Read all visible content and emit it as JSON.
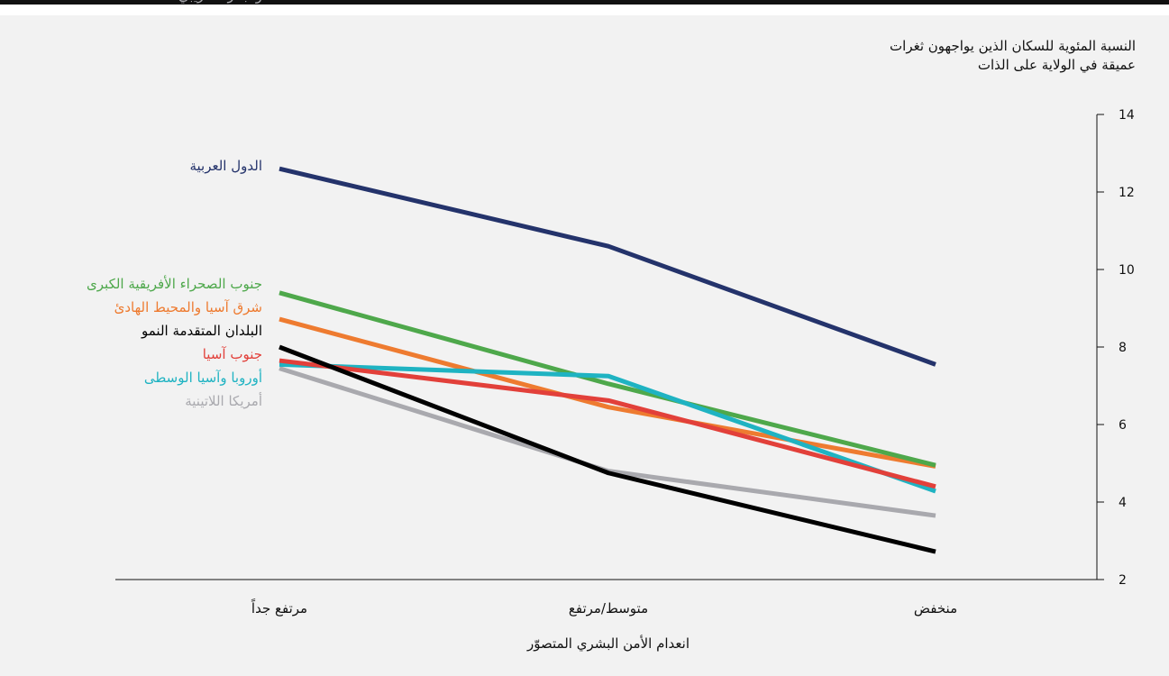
{
  "chart_data": {
    "type": "line",
    "title_lines": [
      "النسبة المئوية للسكان الذين يواجهون ثغرات",
      "عميقة في الولاية على الذات"
    ],
    "xlabel": "انعدام الأمن البشري المتصوّر",
    "ylabel": "",
    "categories": [
      "مرتفع جداً",
      "متوسط/مرتفع",
      "منخفض"
    ],
    "ylim": [
      2,
      14
    ],
    "yticks": [
      2,
      4,
      6,
      8,
      10,
      12,
      14
    ],
    "grid": false,
    "series": [
      {
        "name": "الدول العربية",
        "label_lines": [
          "الدول العربية"
        ],
        "color": "#24336b",
        "values": [
          12.6,
          10.6,
          7.55
        ]
      },
      {
        "name": "جنوب الصحراء الأفريقية الكبرى",
        "label_lines": [
          "جنوب الصحراء الأفريقية الكبرى"
        ],
        "color": "#4ea84b",
        "values": [
          9.4,
          7.05,
          4.95
        ]
      },
      {
        "name": "شرق آسيا والمحيط الهادئ",
        "label_lines": [
          "شرق آسيا والمحيط الهادئ"
        ],
        "color": "#ee7b30",
        "values": [
          8.72,
          6.45,
          4.92
        ]
      },
      {
        "name": "البلدان المتقدمة النمو",
        "label_lines": [
          "البلدان المتقدمة النمو"
        ],
        "color": "#000000",
        "values": [
          8.0,
          4.75,
          2.72
        ]
      },
      {
        "name": "جنوب آسيا",
        "label_lines": [
          "جنوب آسيا"
        ],
        "color": "#e2403a",
        "values": [
          7.65,
          6.62,
          4.4
        ]
      },
      {
        "name": "أوروبا وآسيا الوسطى",
        "label_lines": [
          "أوروبا وآسيا الوسطى"
        ],
        "color": "#1fb3c2",
        "values": [
          7.55,
          7.25,
          4.28
        ]
      },
      {
        "name": "أمريكا اللاتينية والبحر الكاريبي",
        "label_lines": [
          "أمريكا اللاتينية",
          "والبحر الكاريبي"
        ],
        "color": "#a9a9ae",
        "values": [
          7.45,
          4.8,
          3.65
        ]
      }
    ]
  }
}
